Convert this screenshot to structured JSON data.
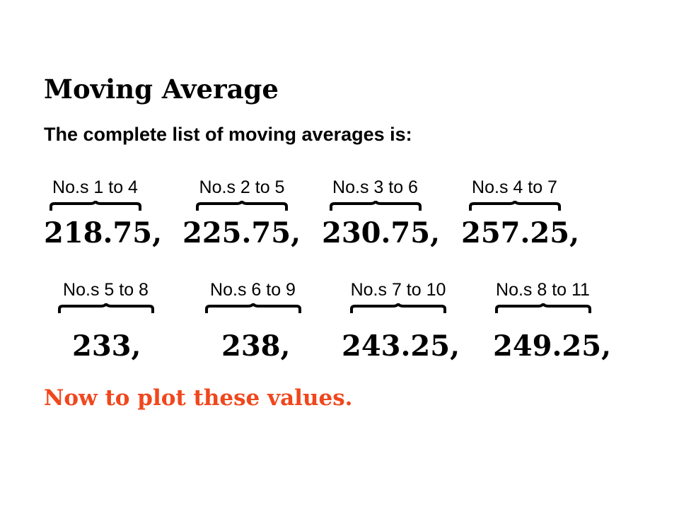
{
  "title": "Moving Average",
  "subtitle": "The complete list of moving averages is:",
  "row1": [
    {
      "label": "No.s 1 to 4",
      "value": "218.75,"
    },
    {
      "label": "No.s 2 to 5",
      "value": "225.75,"
    },
    {
      "label": "No.s 3 to 6",
      "value": "230.75,"
    },
    {
      "label": "No.s 4 to 7",
      "value": "257.25,"
    }
  ],
  "row2": [
    {
      "label": "No.s 5 to 8",
      "value": "233,"
    },
    {
      "label": "No.s 6 to 9",
      "value": "238,"
    },
    {
      "label": "No.s 7 to 10",
      "value": "243.25,"
    },
    {
      "label": "No.s 8 to 11",
      "value": "249.25,"
    }
  ],
  "footer": "Now to plot these values.",
  "colors": {
    "footer": "#f0471d",
    "text": "#000000"
  }
}
